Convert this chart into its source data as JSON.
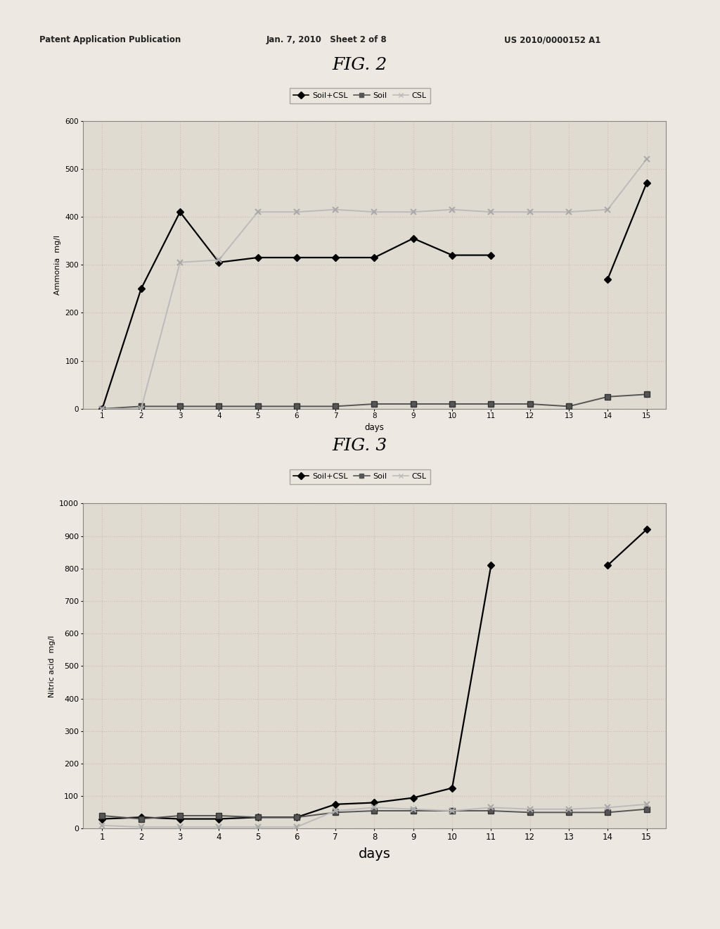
{
  "fig2_title": "FIG. 2",
  "fig3_title": "FIG. 3",
  "header_left": "Patent Application Publication",
  "header_mid": "Jan. 7, 2010   Sheet 2 of 8",
  "header_right": "US 2010/0000152 A1",
  "days": [
    1,
    2,
    3,
    4,
    5,
    6,
    7,
    8,
    9,
    10,
    11,
    12,
    13,
    14,
    15
  ],
  "fig2_soil_csl": [
    0,
    250,
    410,
    305,
    315,
    315,
    315,
    315,
    355,
    320,
    320,
    null,
    null,
    270,
    470
  ],
  "fig2_soil": [
    0,
    5,
    5,
    5,
    5,
    5,
    5,
    10,
    10,
    10,
    10,
    10,
    5,
    25,
    30
  ],
  "fig2_csl": [
    0,
    0,
    305,
    310,
    410,
    410,
    415,
    410,
    410,
    415,
    410,
    410,
    410,
    415,
    520
  ],
  "fig3_soil_csl": [
    30,
    35,
    30,
    30,
    35,
    35,
    75,
    80,
    95,
    125,
    810,
    null,
    null,
    810,
    920
  ],
  "fig3_soil": [
    40,
    30,
    40,
    40,
    35,
    35,
    50,
    55,
    55,
    55,
    55,
    50,
    50,
    50,
    60
  ],
  "fig3_csl": [
    10,
    5,
    5,
    5,
    5,
    5,
    55,
    65,
    60,
    55,
    65,
    60,
    60,
    65,
    75
  ],
  "fig2_ylabel": "Ammonia  mg/l",
  "fig2_xlabel": "days",
  "fig2_ylim": [
    0,
    600
  ],
  "fig2_yticks": [
    0,
    100,
    200,
    300,
    400,
    500,
    600
  ],
  "fig3_ylabel": "Nitric acid  mg/l",
  "fig3_xlabel": "days",
  "fig3_ylim": [
    0,
    1000
  ],
  "fig3_yticks": [
    0,
    100,
    200,
    300,
    400,
    500,
    600,
    700,
    800,
    900,
    1000
  ],
  "legend_labels": [
    "Soil+CSL",
    "Soil",
    "CSL"
  ],
  "soil_csl_color": "#000000",
  "soil_color": "#555555",
  "csl_color": "#bbbbbb",
  "bg_color": "#ede9e2",
  "plot_bg": "#e0dbd0",
  "grid_color": "#c8c0b0",
  "spine_color": "#888880"
}
